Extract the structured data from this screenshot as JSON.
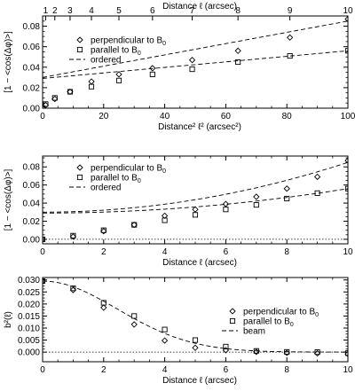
{
  "chart_data": [
    {
      "type": "scatter",
      "xlabel": "Distance² ℓ² (arcsec²)",
      "ylabel": "[1 − <cos(Δφ)>]",
      "xlim": [
        0,
        100
      ],
      "ylim": [
        0,
        0.09
      ],
      "xticks": [
        0,
        20,
        40,
        60,
        80,
        100
      ],
      "yticks": [
        0.0,
        0.02,
        0.04,
        0.06,
        0.08
      ],
      "top_axis": {
        "label": "Distance ℓ (arcsec)",
        "ticks": [
          1,
          2,
          3,
          4,
          5,
          6,
          7,
          8,
          9,
          10
        ]
      },
      "legend_position": "top-left",
      "zero_line": true,
      "x": [
        0,
        1,
        4,
        9,
        16,
        25,
        36,
        49,
        64,
        81,
        100
      ],
      "series": [
        {
          "name": "perpendicular to B0",
          "marker": "diamond",
          "values": [
            0.0,
            0.003,
            0.009,
            0.016,
            0.026,
            0.033,
            0.039,
            0.047,
            0.056,
            0.069,
            0.087
          ]
        },
        {
          "name": "parallel to B0",
          "marker": "square",
          "values": [
            0.0,
            0.004,
            0.01,
            0.016,
            0.021,
            0.027,
            0.033,
            0.038,
            0.045,
            0.051,
            0.056
          ]
        },
        {
          "name": "ordered",
          "style": "dashed",
          "fits": [
            {
              "a": 0.03,
              "b": 0.00055
            },
            {
              "a": 0.029,
              "b": 0.00027
            }
          ]
        }
      ]
    },
    {
      "type": "scatter",
      "xlabel": "Distance ℓ (arcsec)",
      "ylabel": "[1 − <cos(Δφ)>]",
      "xlim": [
        0,
        10
      ],
      "ylim": [
        -0.005,
        0.092
      ],
      "xticks": [
        0,
        2,
        4,
        6,
        8,
        10
      ],
      "yticks": [
        0.0,
        0.02,
        0.04,
        0.06,
        0.08
      ],
      "legend_position": "top-left",
      "zero_line": true,
      "x": [
        0,
        1,
        2,
        3,
        4,
        5,
        6,
        7,
        8,
        9,
        10
      ],
      "series": [
        {
          "name": "perpendicular to B0",
          "marker": "diamond",
          "values": [
            0.0,
            0.003,
            0.009,
            0.016,
            0.026,
            0.033,
            0.039,
            0.047,
            0.056,
            0.069,
            0.087
          ]
        },
        {
          "name": "parallel to B0",
          "marker": "square",
          "values": [
            0.0,
            0.004,
            0.01,
            0.016,
            0.021,
            0.027,
            0.033,
            0.038,
            0.045,
            0.051,
            0.056
          ]
        },
        {
          "name": "ordered",
          "style": "dashed",
          "fits": [
            {
              "a": 0.03,
              "b": 0.00055
            },
            {
              "a": 0.029,
              "b": 0.00027
            }
          ]
        }
      ]
    },
    {
      "type": "scatter",
      "xlabel": "Distance ℓ (arcsec)",
      "ylabel": "b²(ℓ)",
      "xlim": [
        0,
        10
      ],
      "ylim": [
        -0.004,
        0.031
      ],
      "xticks": [
        0,
        2,
        4,
        6,
        8,
        10
      ],
      "yticks": [
        0.0,
        0.005,
        0.01,
        0.015,
        0.02,
        0.025,
        0.03
      ],
      "legend_position": "right",
      "zero_line": true,
      "x": [
        0,
        1,
        2,
        3,
        4,
        5,
        6,
        7,
        8,
        9,
        10
      ],
      "series": [
        {
          "name": "perpendicular to B0",
          "marker": "diamond",
          "values": [
            0.0295,
            0.0258,
            0.0185,
            0.0115,
            0.0048,
            0.0018,
            0.0008,
            0.0001,
            -0.0003,
            -0.0005,
            -0.0008
          ]
        },
        {
          "name": "parallel to B0",
          "marker": "square",
          "values": [
            0.0295,
            0.0265,
            0.0205,
            0.015,
            0.0094,
            0.005,
            0.0023,
            0.0005,
            0.0001,
            0.0,
            -0.0004
          ]
        },
        {
          "name": "beam",
          "style": "dashed",
          "gaussian": {
            "amplitude": 0.0295,
            "sigma": 2.45
          }
        }
      ]
    }
  ]
}
